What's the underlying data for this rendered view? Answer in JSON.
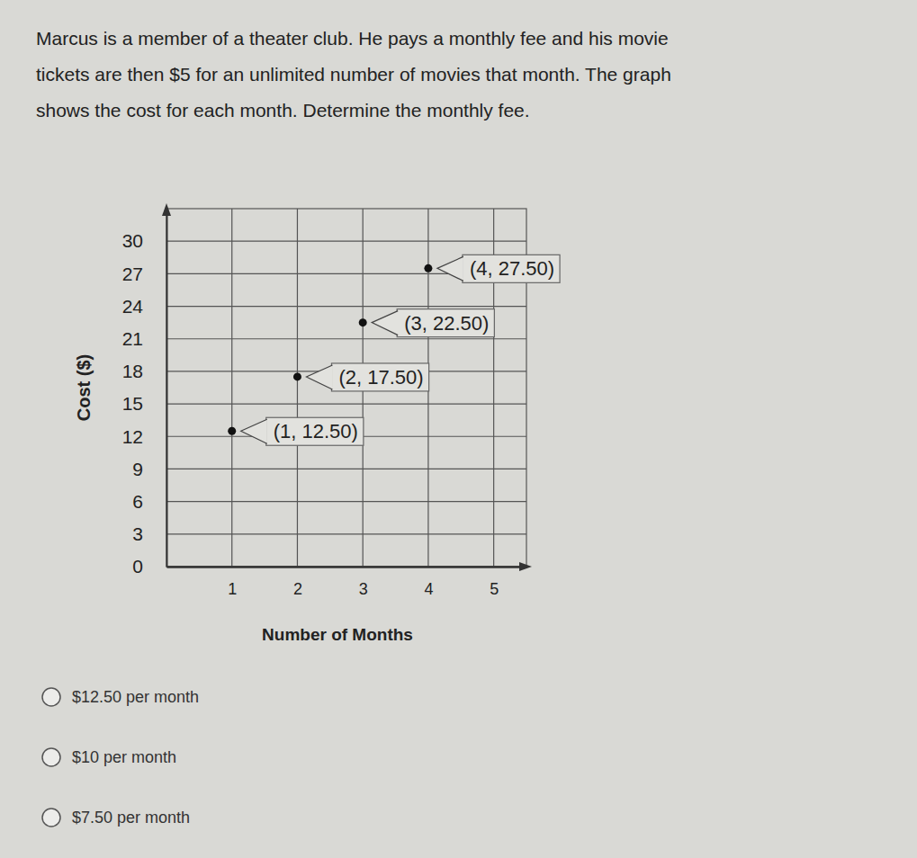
{
  "question": [
    "Marcus is a member of a theater club. He pays a monthly fee and his movie",
    "tickets are then $5 for an unlimited number of movies that month. The graph",
    "shows the cost for each month. Determine the monthly fee."
  ],
  "chart_data": {
    "type": "scatter",
    "x_label": "Number of Months",
    "y_label": "Cost ($)",
    "x": [
      1,
      2,
      3,
      4
    ],
    "values": [
      12.5,
      17.5,
      22.5,
      27.5
    ],
    "value_labels": [
      "(1, 12.50)",
      "(2, 17.50)",
      "(3, 22.50)",
      "(4, 27.50)"
    ],
    "data_labels": true,
    "color": "#111111",
    "marker": "circle",
    "xlim": [
      0,
      5.5
    ],
    "xticks": [
      1,
      2,
      3,
      4,
      5
    ],
    "ylim": [
      0,
      33
    ],
    "yticks": [
      0,
      3,
      6,
      9,
      12,
      15,
      18,
      21,
      24,
      27,
      30
    ],
    "grid": true
  },
  "options": [
    "$12.50 per month",
    "$10 per month",
    "$7.50 per month"
  ]
}
